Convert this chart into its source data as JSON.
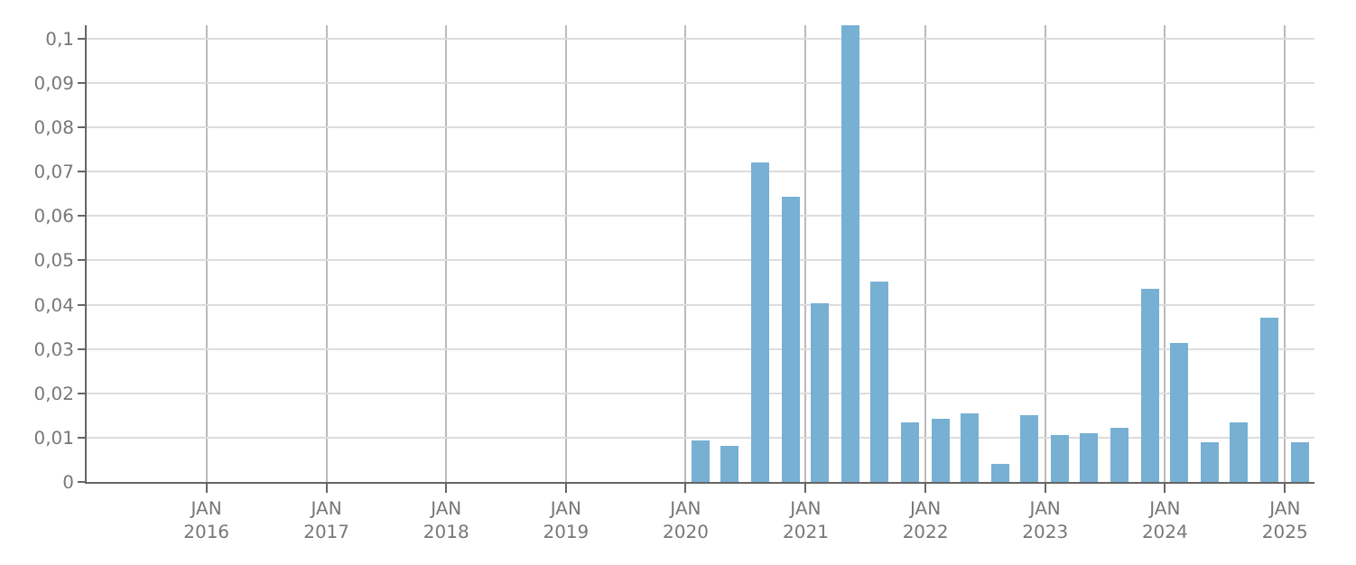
{
  "chart_data": {
    "type": "bar",
    "x": [
      "2020-02-15",
      "2020-05-15",
      "2020-08-15",
      "2020-11-15",
      "2021-02-15",
      "2021-05-15",
      "2021-08-15",
      "2021-11-15",
      "2022-02-15",
      "2022-05-15",
      "2022-08-15",
      "2022-11-15",
      "2023-02-15",
      "2023-05-15",
      "2023-08-15",
      "2023-11-15",
      "2024-02-15",
      "2024-05-15",
      "2024-08-15",
      "2024-11-15",
      "2025-02-15"
    ],
    "values": [
      0.0093,
      0.0083,
      0.072,
      0.0643,
      0.0403,
      0.103,
      0.045,
      0.0136,
      0.0143,
      0.0155,
      0.0039,
      0.0151,
      0.0105,
      0.0109,
      0.0124,
      0.0434,
      0.0314,
      0.0089,
      0.0136,
      0.0372,
      0.0089
    ],
    "color": "#77b0d3",
    "xlim": [
      "2015-01-01",
      "2025-04-01"
    ],
    "xticks": [
      {
        "value": "2016-01-01",
        "label": "JAN\n2016"
      },
      {
        "value": "2017-01-01",
        "label": "JAN\n2017"
      },
      {
        "value": "2018-01-01",
        "label": "JAN\n2018"
      },
      {
        "value": "2019-01-01",
        "label": "JAN\n2019"
      },
      {
        "value": "2020-01-01",
        "label": "JAN\n2020"
      },
      {
        "value": "2021-01-01",
        "label": "JAN\n2021"
      },
      {
        "value": "2022-01-01",
        "label": "JAN\n2022"
      },
      {
        "value": "2023-01-01",
        "label": "JAN\n2023"
      },
      {
        "value": "2024-01-01",
        "label": "JAN\n2024"
      },
      {
        "value": "2025-01-01",
        "label": "JAN\n2025"
      }
    ],
    "ylim": [
      0,
      0.103
    ],
    "yticks": [
      {
        "value": 0,
        "label": "0"
      },
      {
        "value": 0.01,
        "label": "0,01"
      },
      {
        "value": 0.02,
        "label": "0,02"
      },
      {
        "value": 0.03,
        "label": "0,03"
      },
      {
        "value": 0.04,
        "label": "0,04"
      },
      {
        "value": 0.05,
        "label": "0,05"
      },
      {
        "value": 0.06,
        "label": "0,06"
      },
      {
        "value": 0.07,
        "label": "0,07"
      },
      {
        "value": 0.08,
        "label": "0,08"
      },
      {
        "value": 0.09,
        "label": "0,09"
      },
      {
        "value": 0.1,
        "label": "0,1"
      }
    ],
    "grid": true
  }
}
